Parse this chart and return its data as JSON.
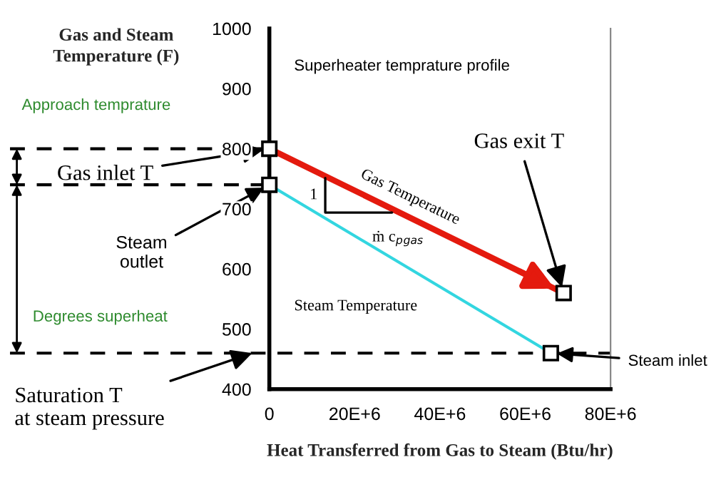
{
  "chart_data": {
    "type": "line",
    "ylabel": "Gas and Steam\nTemperature (F)",
    "xlabel": "Heat Transferred from Gas to Steam (Btu/hr)",
    "xlim": [
      0,
      80000000
    ],
    "ylim": [
      400,
      1000
    ],
    "xticks": [
      0,
      {
        "value": 20000000,
        "label": "20E+6"
      },
      {
        "value": 40000000,
        "label": "40E+6"
      },
      {
        "value": 60000000,
        "label": "60E+6"
      },
      {
        "value": 80000000,
        "label": "80E+6"
      }
    ],
    "yticks": [
      400,
      500,
      600,
      700,
      800,
      900,
      1000
    ],
    "grid": false,
    "marker": "square",
    "series": [
      {
        "color": "#e41a0e",
        "x": [
          0,
          69000000
        ],
        "values": [
          800,
          560
        ]
      },
      {
        "color": "#33d6e0",
        "x": [
          0,
          66000000
        ],
        "values": [
          740,
          460
        ]
      }
    ],
    "ref_lines": [
      {
        "axis": "y",
        "value": 460,
        "line_style": "dashed"
      }
    ],
    "annotations": [
      "Superheater temprature profile",
      {
        "text": "Gas inlet T",
        "x": 0,
        "y": 800
      },
      {
        "text": "Steam\noutlet",
        "x": 0,
        "y": 740
      },
      {
        "text": "Gas exit T",
        "x": 69000000,
        "y": 560
      },
      {
        "text": "Steam inlet",
        "x": 66000000,
        "y": 460
      },
      "Saturation T\nat steam pressure",
      "Approach temprature",
      "Degrees superheat",
      {
        "text": "Gas Temperature",
        "x": 33000000,
        "y": 686
      },
      "Steam Temperature",
      "1",
      "ṁ c$_{p}$$_{gas}$"
    ]
  }
}
